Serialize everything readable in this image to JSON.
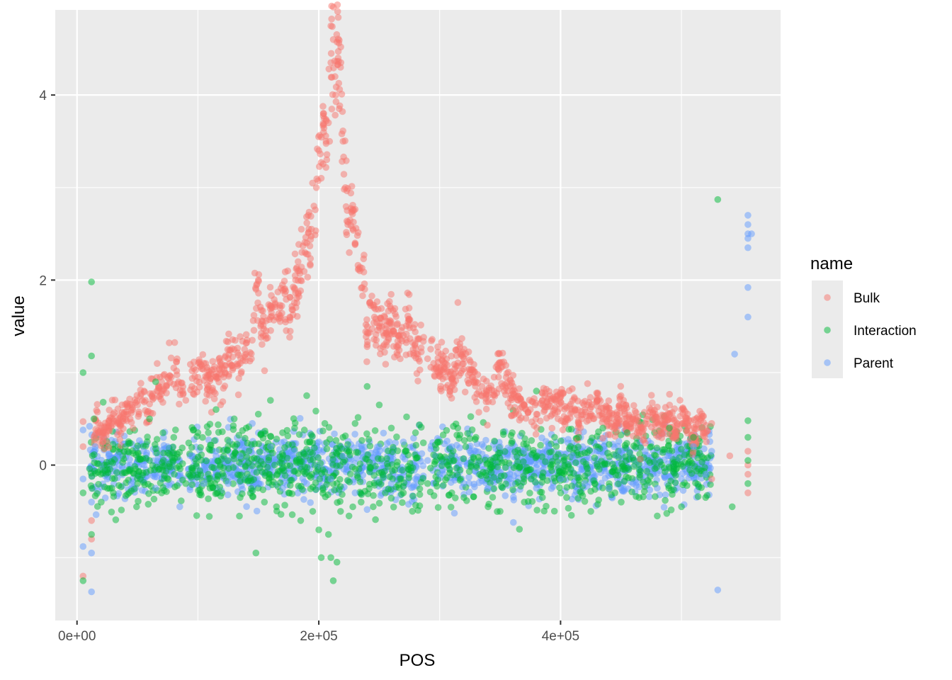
{
  "chart_data": {
    "type": "scatter",
    "title": "",
    "xlabel": "POS",
    "ylabel": "value",
    "xlim": [
      -18000,
      582000
    ],
    "ylim": [
      -1.68,
      4.92
    ],
    "x_ticks": [
      0,
      200000,
      400000
    ],
    "x_tick_labels": [
      "0e+00",
      "2e+05",
      "4e+05"
    ],
    "x_minor_ticks": [
      100000,
      300000,
      500000
    ],
    "y_ticks": [
      0,
      2,
      4
    ],
    "y_tick_labels": [
      "0",
      "2",
      "4"
    ],
    "y_minor_ticks": [
      -1,
      1,
      3
    ],
    "grid": true,
    "legend": {
      "title": "name",
      "position": "right"
    },
    "series": [
      {
        "name": "Bulk",
        "color": "#F8766D",
        "points": [
          [
            5000,
            0.47
          ],
          [
            5000,
            0.2
          ],
          [
            5000,
            -1.2
          ],
          [
            12000,
            -0.6
          ],
          [
            12000,
            -0.8
          ],
          [
            15000,
            0.5
          ],
          [
            18000,
            0.35
          ],
          [
            22000,
            0.3
          ],
          [
            26000,
            0.4
          ],
          [
            30000,
            0.55
          ],
          [
            34000,
            0.45
          ],
          [
            38000,
            0.5
          ],
          [
            42000,
            0.55
          ],
          [
            46000,
            0.6
          ],
          [
            50000,
            0.65
          ],
          [
            54000,
            0.7
          ],
          [
            58000,
            0.55
          ],
          [
            62000,
            0.75
          ],
          [
            66000,
            0.8
          ],
          [
            70000,
            0.9
          ],
          [
            74000,
            0.85
          ],
          [
            78000,
            0.95
          ],
          [
            80000,
            1.05
          ],
          [
            84000,
            0.9
          ],
          [
            90000,
            0.7
          ],
          [
            95000,
            0.85
          ],
          [
            100000,
            0.95
          ],
          [
            105000,
            1.1
          ],
          [
            110000,
            0.8
          ],
          [
            115000,
            0.95
          ],
          [
            120000,
            1.05
          ],
          [
            125000,
            1.15
          ],
          [
            130000,
            1.25
          ],
          [
            135000,
            1.1
          ],
          [
            140000,
            1.2
          ],
          [
            145000,
            1.35
          ],
          [
            148000,
            1.9
          ],
          [
            150000,
            2.0
          ],
          [
            152000,
            1.5
          ],
          [
            156000,
            1.4
          ],
          [
            160000,
            1.6
          ],
          [
            164000,
            1.75
          ],
          [
            168000,
            1.7
          ],
          [
            172000,
            1.85
          ],
          [
            176000,
            1.6
          ],
          [
            180000,
            1.9
          ],
          [
            184000,
            2.1
          ],
          [
            186000,
            2.3
          ],
          [
            190000,
            2.4
          ],
          [
            194000,
            2.55
          ],
          [
            196000,
            2.8
          ],
          [
            198000,
            3.0
          ],
          [
            200000,
            3.4
          ],
          [
            202000,
            3.1
          ],
          [
            204000,
            3.8
          ],
          [
            206000,
            3.5
          ],
          [
            208000,
            3.7
          ],
          [
            210000,
            4.35
          ],
          [
            212000,
            4.6
          ],
          [
            214000,
            4.0
          ],
          [
            216000,
            4.4
          ],
          [
            218000,
            4.3
          ],
          [
            220000,
            3.5
          ],
          [
            222000,
            3.0
          ],
          [
            224000,
            2.6
          ],
          [
            228000,
            2.75
          ],
          [
            230000,
            2.4
          ],
          [
            234000,
            2.1
          ],
          [
            238000,
            1.9
          ],
          [
            242000,
            1.75
          ],
          [
            246000,
            1.6
          ],
          [
            250000,
            1.5
          ],
          [
            254000,
            1.4
          ],
          [
            258000,
            1.55
          ],
          [
            262000,
            1.45
          ],
          [
            266000,
            1.3
          ],
          [
            270000,
            1.4
          ],
          [
            274000,
            1.55
          ],
          [
            278000,
            1.25
          ],
          [
            282000,
            1.2
          ],
          [
            240000,
            1.28
          ],
          [
            290000,
            1.15
          ],
          [
            295000,
            1.1
          ],
          [
            300000,
            1.05
          ],
          [
            305000,
            0.95
          ],
          [
            310000,
            0.85
          ],
          [
            315000,
            1.25
          ],
          [
            320000,
            1.15
          ],
          [
            325000,
            1.0
          ],
          [
            330000,
            0.9
          ],
          [
            335000,
            0.85
          ],
          [
            340000,
            0.75
          ],
          [
            345000,
            0.8
          ],
          [
            350000,
            1.1
          ],
          [
            355000,
            0.95
          ],
          [
            360000,
            0.8
          ],
          [
            365000,
            0.7
          ],
          [
            370000,
            0.65
          ],
          [
            375000,
            0.6
          ],
          [
            380000,
            0.55
          ],
          [
            385000,
            0.7
          ],
          [
            390000,
            0.65
          ],
          [
            395000,
            0.6
          ],
          [
            400000,
            0.75
          ],
          [
            405000,
            0.5
          ],
          [
            410000,
            0.7
          ],
          [
            415000,
            0.45
          ],
          [
            420000,
            0.6
          ],
          [
            425000,
            0.55
          ],
          [
            430000,
            0.7
          ],
          [
            435000,
            0.5
          ],
          [
            440000,
            0.55
          ],
          [
            445000,
            0.4
          ],
          [
            450000,
            0.75
          ],
          [
            455000,
            0.45
          ],
          [
            460000,
            0.5
          ],
          [
            465000,
            0.35
          ],
          [
            470000,
            0.45
          ],
          [
            475000,
            0.6
          ],
          [
            480000,
            0.5
          ],
          [
            485000,
            0.4
          ],
          [
            490000,
            0.55
          ],
          [
            495000,
            0.35
          ],
          [
            500000,
            0.6
          ],
          [
            505000,
            0.45
          ],
          [
            510000,
            0.3
          ],
          [
            515000,
            0.5
          ],
          [
            520000,
            0.35
          ],
          [
            525000,
            -0.15
          ],
          [
            525000,
            0.45
          ],
          [
            540000,
            0.1
          ],
          [
            555000,
            -0.3
          ],
          [
            555000,
            0.15
          ],
          [
            555000,
            0.0
          ],
          [
            555000,
            -0.1
          ]
        ]
      },
      {
        "name": "Interaction",
        "color": "#00BA38",
        "points": [
          [
            5000,
            1.0
          ],
          [
            5000,
            -0.3
          ],
          [
            5000,
            -1.25
          ],
          [
            12000,
            1.98
          ],
          [
            12000,
            1.18
          ],
          [
            12000,
            -0.75
          ],
          [
            14000,
            0.5
          ],
          [
            20000,
            -0.4
          ],
          [
            30000,
            -0.3
          ],
          [
            40000,
            0.2
          ],
          [
            50000,
            -0.2
          ],
          [
            60000,
            0.5
          ],
          [
            65000,
            0.9
          ],
          [
            70000,
            -0.3
          ],
          [
            80000,
            0.3
          ],
          [
            90000,
            -0.2
          ],
          [
            100000,
            0.35
          ],
          [
            110000,
            -0.25
          ],
          [
            115000,
            0.6
          ],
          [
            120000,
            -0.3
          ],
          [
            130000,
            0.5
          ],
          [
            135000,
            -0.35
          ],
          [
            140000,
            0.4
          ],
          [
            148000,
            -0.95
          ],
          [
            150000,
            0.55
          ],
          [
            155000,
            -0.4
          ],
          [
            160000,
            0.7
          ],
          [
            165000,
            -0.45
          ],
          [
            170000,
            0.35
          ],
          [
            175000,
            -0.3
          ],
          [
            180000,
            0.4
          ],
          [
            185000,
            -0.6
          ],
          [
            190000,
            0.75
          ],
          [
            195000,
            -0.5
          ],
          [
            200000,
            -0.7
          ],
          [
            202000,
            -1.0
          ],
          [
            205000,
            0.45
          ],
          [
            208000,
            -0.75
          ],
          [
            210000,
            -1.0
          ],
          [
            212000,
            -1.25
          ],
          [
            215000,
            -1.05
          ],
          [
            218000,
            -0.5
          ],
          [
            220000,
            0.3
          ],
          [
            225000,
            -0.55
          ],
          [
            230000,
            0.45
          ],
          [
            235000,
            -0.4
          ],
          [
            240000,
            0.85
          ],
          [
            245000,
            -0.45
          ],
          [
            250000,
            0.65
          ],
          [
            255000,
            -0.3
          ],
          [
            260000,
            0.4
          ],
          [
            270000,
            -0.3
          ],
          [
            280000,
            0.35
          ],
          [
            290000,
            -0.2
          ],
          [
            300000,
            0.25
          ],
          [
            310000,
            -0.3
          ],
          [
            315000,
            0.4
          ],
          [
            320000,
            -0.35
          ],
          [
            330000,
            0.3
          ],
          [
            340000,
            -0.45
          ],
          [
            350000,
            -0.5
          ],
          [
            360000,
            0.35
          ],
          [
            370000,
            -0.4
          ],
          [
            380000,
            0.8
          ],
          [
            385000,
            -0.35
          ],
          [
            395000,
            0.3
          ],
          [
            405000,
            -0.35
          ],
          [
            415000,
            0.3
          ],
          [
            425000,
            -0.5
          ],
          [
            435000,
            0.4
          ],
          [
            445000,
            -0.3
          ],
          [
            455000,
            0.35
          ],
          [
            465000,
            -0.35
          ],
          [
            475000,
            0.2
          ],
          [
            480000,
            -0.55
          ],
          [
            490000,
            0.4
          ],
          [
            500000,
            -0.45
          ],
          [
            510000,
            0.3
          ],
          [
            520000,
            -0.35
          ],
          [
            530000,
            2.87
          ],
          [
            542000,
            -0.45
          ],
          [
            555000,
            0.48
          ],
          [
            555000,
            0.3
          ],
          [
            555000,
            -0.2
          ],
          [
            555000,
            0.05
          ]
        ]
      },
      {
        "name": "Parent",
        "color": "#619CFF",
        "points": [
          [
            5000,
            0.38
          ],
          [
            5000,
            -0.15
          ],
          [
            5000,
            -0.88
          ],
          [
            12000,
            -0.95
          ],
          [
            12000,
            -1.37
          ],
          [
            12000,
            -0.4
          ],
          [
            15000,
            0.2
          ],
          [
            25000,
            -0.15
          ],
          [
            35000,
            0.1
          ],
          [
            45000,
            -0.2
          ],
          [
            55000,
            0.15
          ],
          [
            65000,
            -0.25
          ],
          [
            75000,
            0.2
          ],
          [
            85000,
            -0.45
          ],
          [
            95000,
            0.1
          ],
          [
            105000,
            -0.2
          ],
          [
            115000,
            0.15
          ],
          [
            125000,
            -0.2
          ],
          [
            135000,
            0.1
          ],
          [
            145000,
            0.45
          ],
          [
            150000,
            -0.2
          ],
          [
            160000,
            0.2
          ],
          [
            170000,
            -0.25
          ],
          [
            180000,
            0.15
          ],
          [
            190000,
            -0.2
          ],
          [
            200000,
            0.25
          ],
          [
            210000,
            -0.15
          ],
          [
            220000,
            0.1
          ],
          [
            230000,
            -0.3
          ],
          [
            240000,
            -0.48
          ],
          [
            250000,
            0.2
          ],
          [
            260000,
            -0.2
          ],
          [
            270000,
            0.25
          ],
          [
            280000,
            -0.15
          ],
          [
            290000,
            0.05
          ],
          [
            300000,
            -0.1
          ],
          [
            310000,
            0.2
          ],
          [
            320000,
            -0.2
          ],
          [
            330000,
            0.15
          ],
          [
            340000,
            -0.25
          ],
          [
            350000,
            0.2
          ],
          [
            360000,
            -0.2
          ],
          [
            370000,
            0.15
          ],
          [
            380000,
            -0.25
          ],
          [
            390000,
            0.2
          ],
          [
            400000,
            -0.15
          ],
          [
            410000,
            0.1
          ],
          [
            420000,
            -0.2
          ],
          [
            430000,
            0.15
          ],
          [
            440000,
            -0.25
          ],
          [
            450000,
            0.15
          ],
          [
            460000,
            -0.2
          ],
          [
            470000,
            0.15
          ],
          [
            480000,
            -0.25
          ],
          [
            490000,
            0.1
          ],
          [
            500000,
            -0.15
          ],
          [
            510000,
            0.2
          ],
          [
            520000,
            -0.1
          ],
          [
            525000,
            0.15
          ],
          [
            530000,
            -1.35
          ],
          [
            544000,
            1.2
          ],
          [
            555000,
            2.7
          ],
          [
            555000,
            2.6
          ],
          [
            555000,
            2.5
          ],
          [
            555000,
            2.45
          ],
          [
            555000,
            2.35
          ],
          [
            558000,
            2.5
          ],
          [
            555000,
            1.92
          ],
          [
            555000,
            1.6
          ]
        ]
      }
    ],
    "dense_bands": [
      {
        "series": "Parent",
        "x_range": [
          10000,
          525000
        ],
        "center": 0.0,
        "spread": 0.28,
        "count": 1400
      },
      {
        "series": "Interaction",
        "x_range": [
          10000,
          525000
        ],
        "center": 0.0,
        "spread": 0.38,
        "count": 1100
      }
    ],
    "dense_gaps": [
      [
        88000,
        92000
      ],
      [
        287000,
        292000
      ]
    ]
  }
}
